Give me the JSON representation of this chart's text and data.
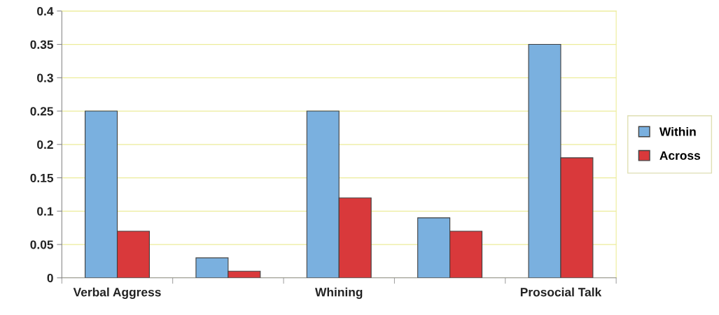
{
  "chart_data": {
    "type": "bar",
    "categories": [
      "Verbal Aggress",
      null,
      "Whining",
      null,
      "Prosocial Talk"
    ],
    "series": [
      {
        "name": "Within",
        "color": "#7ab0df",
        "values": [
          0.25,
          0.03,
          0.25,
          0.09,
          0.35
        ]
      },
      {
        "name": "Across",
        "color": "#d9393b",
        "values": [
          0.07,
          0.01,
          0.12,
          0.07,
          0.18
        ]
      }
    ],
    "ylim": [
      0,
      0.4
    ],
    "yticks": [
      0,
      0.05,
      0.1,
      0.15,
      0.2,
      0.25,
      0.3,
      0.35,
      0.4
    ],
    "grid": "y",
    "legend": "right"
  }
}
